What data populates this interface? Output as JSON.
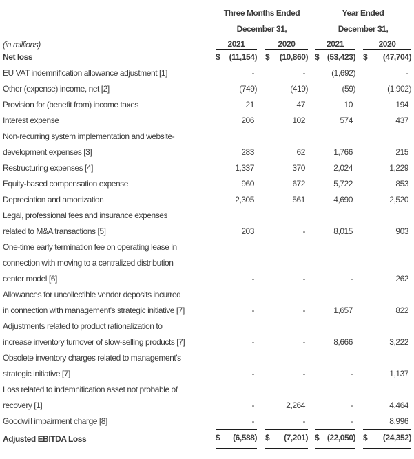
{
  "colors": {
    "text": "#3d3d3d",
    "rule": "#1c1c1c",
    "background": "#ffffff"
  },
  "table": {
    "in_millions_label": "(in millions)",
    "currency_symbol": "$",
    "column_groups": [
      {
        "title_line1": "Three Months Ended",
        "title_line2": "December 31,"
      },
      {
        "title_line1": "Year Ended",
        "title_line2": "December 31,"
      }
    ],
    "year_headers": [
      "2021",
      "2020",
      "2021",
      "2020"
    ],
    "rows": [
      {
        "label": "Net loss",
        "bold": true,
        "dollar": true,
        "values": [
          "(11,154)",
          "(10,860)",
          "(53,423)",
          "(47,704)"
        ]
      },
      {
        "label": "EU VAT indemnification allowance adjustment [1]",
        "values": [
          "-",
          "-",
          "(1,692)",
          "-"
        ]
      },
      {
        "label": "Other (expense) income, net [2]",
        "values": [
          "(749)",
          "(419)",
          "(59)",
          "(1,902)"
        ]
      },
      {
        "label": "Provision for (benefit from) income taxes",
        "values": [
          "21",
          "47",
          "10",
          "194"
        ]
      },
      {
        "label": "Interest expense",
        "values": [
          "206",
          "102",
          "574",
          "437"
        ]
      },
      {
        "label": "Non-recurring system implementation and website-\ndevelopment expenses [3]",
        "values": [
          "283",
          "62",
          "1,766",
          "215"
        ]
      },
      {
        "label": "Restructuring expenses [4]",
        "values": [
          "1,337",
          "370",
          "2,024",
          "1,229"
        ]
      },
      {
        "label": "Equity-based compensation expense",
        "values": [
          "960",
          "672",
          "5,722",
          "853"
        ]
      },
      {
        "label": "Depreciation and amortization",
        "values": [
          "2,305",
          "561",
          "4,690",
          "2,520"
        ]
      },
      {
        "label": "Legal, professional fees and insurance expenses\nrelated to M&A transactions [5]",
        "values": [
          "203",
          "-",
          "8,015",
          "903"
        ]
      },
      {
        "label": "One-time early termination fee on operating lease in\nconnection with moving to a centralized distribution\ncenter model [6]",
        "values": [
          "-",
          "-",
          "-",
          "262"
        ]
      },
      {
        "label": "Allowances for uncollectible vendor deposits incurred\nin connection with management's strategic initiative [7]",
        "values": [
          "-",
          "-",
          "1,657",
          "822"
        ]
      },
      {
        "label": "Adjustments related to product rationalization to\nincrease inventory turnover of slow-selling products [7]",
        "values": [
          "-",
          "-",
          "8,666",
          "3,222"
        ]
      },
      {
        "label": "Obsolete inventory charges related to management's\nstrategic initiative [7]",
        "values": [
          "-",
          "-",
          "-",
          "1,137"
        ]
      },
      {
        "label": "Loss related to indemnification asset not probable of\nrecovery [1]",
        "values": [
          "-",
          "2,264",
          "-",
          "4,464"
        ]
      },
      {
        "label": "Goodwill impairment charge [8]",
        "values": [
          "-",
          "-",
          "-",
          "8,996"
        ]
      },
      {
        "label": "Adjusted EBITDA Loss",
        "bold": true,
        "dollar": true,
        "total": true,
        "values": [
          "(6,588)",
          "(7,201)",
          "(22,050)",
          "(24,352)"
        ]
      }
    ]
  }
}
